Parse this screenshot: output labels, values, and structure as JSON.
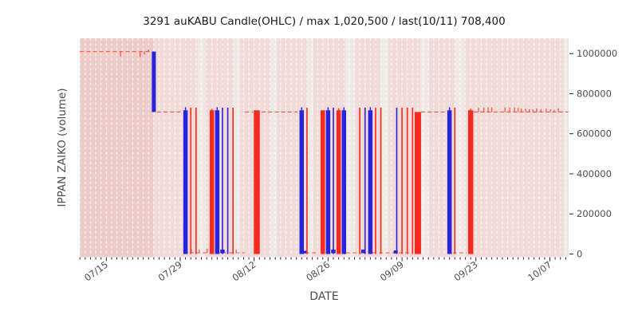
{
  "title": "3291 auKABU Candle(OHLC) / max 1,020,500 / last(10/11) 708,400",
  "chart_data": {
    "type": "candlestick-ohlc",
    "title": "3291 auKABU Candle(OHLC) / max 1,020,500 / last(10/11) 708,400",
    "xlabel": "DATE",
    "ylabel": "IPPAN ZAIKO (volume)",
    "x_tick_labels": [
      "07/15",
      "07/29",
      "08/12",
      "08/26",
      "09/09",
      "09/23",
      "10/07"
    ],
    "x_tick_days": [
      0,
      14,
      28,
      42,
      56,
      70,
      84
    ],
    "day_origin_label": "07/15",
    "day_range": [
      -5,
      87.5
    ],
    "y_ticks": [
      0,
      200000,
      400000,
      600000,
      800000,
      1000000
    ],
    "ylim": [
      -16000,
      1075000
    ],
    "max_value": 1020500,
    "last_date": "10/11",
    "last_value": 708400,
    "levels": {
      "max_line": 1010000,
      "mid_line": 708400,
      "zero_line": 6000
    },
    "candles": [
      {
        "d": 9,
        "color": "blue",
        "w": 5,
        "top": 1010000,
        "bot": 708400
      },
      {
        "d": 15,
        "color": "blue",
        "w": 5.5,
        "top": 717000,
        "bot": 0,
        "wick": 732000
      },
      {
        "d": 16,
        "color": "red",
        "w": 1.6,
        "top": 730000,
        "bot": 0
      },
      {
        "d": 17,
        "color": "red",
        "w": 1.6,
        "top": 730000,
        "bot": 0
      },
      {
        "d": 20,
        "color": "red",
        "w": 5.5,
        "top": 717000,
        "bot": 0,
        "wick": 724000
      },
      {
        "d": 21,
        "color": "blue",
        "w": 5.5,
        "top": 717000,
        "bot": 0,
        "wick": 732000
      },
      {
        "d": 22,
        "color": "blue",
        "w": 1.6,
        "top": 730000,
        "bot": 0
      },
      {
        "d": 23,
        "color": "blue",
        "w": 1.6,
        "top": 730000,
        "bot": 0
      },
      {
        "d": 24,
        "color": "red",
        "w": 1.6,
        "top": 730000,
        "bot": 0
      },
      {
        "d": 28.5,
        "color": "red",
        "w": 7.5,
        "top": 717000,
        "bot": 0
      },
      {
        "d": 37,
        "color": "blue",
        "w": 5.5,
        "top": 717000,
        "bot": 0,
        "wick": 732000
      },
      {
        "d": 38,
        "color": "red",
        "w": 1.6,
        "top": 730000,
        "bot": 0
      },
      {
        "d": 41,
        "color": "red",
        "w": 5.5,
        "top": 717000,
        "bot": 0
      },
      {
        "d": 42,
        "color": "blue",
        "w": 5.5,
        "top": 717000,
        "bot": 0,
        "wick": 732000
      },
      {
        "d": 43,
        "color": "blue",
        "w": 1.6,
        "top": 730000,
        "bot": 0
      },
      {
        "d": 44,
        "color": "red",
        "w": 5.5,
        "top": 717000,
        "bot": 0,
        "wick": 727000
      },
      {
        "d": 45,
        "color": "blue",
        "w": 5.5,
        "top": 717000,
        "bot": 0,
        "wick": 732000
      },
      {
        "d": 48,
        "color": "red",
        "w": 1.6,
        "top": 730000,
        "bot": 0
      },
      {
        "d": 49,
        "color": "blue",
        "w": 1.6,
        "top": 730000,
        "bot": 0
      },
      {
        "d": 50,
        "color": "blue",
        "w": 5.5,
        "top": 717000,
        "bot": 0,
        "wick": 732000
      },
      {
        "d": 51,
        "color": "red",
        "w": 1.6,
        "top": 730000,
        "bot": 0
      },
      {
        "d": 52,
        "color": "red",
        "w": 1.6,
        "top": 730000,
        "bot": 0
      },
      {
        "d": 55,
        "color": "blue",
        "w": 1.6,
        "top": 730000,
        "bot": 0
      },
      {
        "d": 56,
        "color": "red",
        "w": 1.6,
        "top": 730000,
        "bot": 0
      },
      {
        "d": 57,
        "color": "red",
        "w": 1.6,
        "top": 730000,
        "bot": 0
      },
      {
        "d": 58,
        "color": "red",
        "w": 1.6,
        "top": 730000,
        "bot": 0
      },
      {
        "d": 59,
        "color": "red",
        "w": 8,
        "top": 708400,
        "bot": 0
      },
      {
        "d": 65,
        "color": "blue",
        "w": 5.5,
        "top": 717000,
        "bot": 0,
        "wick": 732000
      },
      {
        "d": 66,
        "color": "red",
        "w": 1.6,
        "top": 730000,
        "bot": 0
      },
      {
        "d": 69,
        "color": "red",
        "w": 6.5,
        "top": 717000,
        "bot": 0,
        "wick": 725000
      }
    ],
    "small_bodies": [
      {
        "d": 22,
        "color": "blue",
        "w": 5.5,
        "top": 22000,
        "bot": 4000
      },
      {
        "d": 37.5,
        "color": "blue",
        "w": 5,
        "top": 15000,
        "bot": 3000
      },
      {
        "d": 43,
        "color": "blue",
        "w": 5.5,
        "top": 22000,
        "bot": 4000
      },
      {
        "d": 48.7,
        "color": "blue",
        "w": 5.5,
        "top": 22000,
        "bot": 4000
      },
      {
        "d": 54.8,
        "color": "blue",
        "w": 5,
        "top": 18000,
        "bot": 3000
      }
    ],
    "dashed_segments": {
      "max": [
        [
          -5.0,
          8.6
        ]
      ],
      "mid": [
        [
          9.6,
          14.3
        ],
        [
          26.3,
          27.8
        ],
        [
          29.4,
          36.2
        ],
        [
          59.6,
          64.1
        ],
        [
          69.6,
          87.5
        ]
      ],
      "zero": [
        [
          15.8,
          26.2
        ],
        [
          37.7,
          40.2
        ],
        [
          45.4,
          49.2
        ],
        [
          50.4,
          57.8
        ],
        [
          65.6,
          68.2
        ]
      ]
    },
    "max_line_ticks": [
      {
        "d": 2.7,
        "v": 985000
      },
      {
        "d": 6.4,
        "v": 983000
      },
      {
        "d": 7.2,
        "v": 995000
      },
      {
        "d": 8.0,
        "v": 1020500
      }
    ],
    "zero_line_ticks": [
      {
        "d": 16.1,
        "v": 24000
      },
      {
        "d": 17.6,
        "v": 22000
      },
      {
        "d": 19.1,
        "v": 26000
      },
      {
        "d": 22.0,
        "v": 20000
      },
      {
        "d": 24.6,
        "v": 22000
      },
      {
        "d": 37.8,
        "v": 18000
      }
    ],
    "mid_line_ticks": [
      {
        "d": 70.5,
        "v": 730000
      },
      {
        "d": 71.5,
        "v": 731000
      },
      {
        "d": 72.3,
        "v": 732000
      },
      {
        "d": 73.0,
        "v": 732000
      },
      {
        "d": 75.5,
        "v": 732000
      },
      {
        "d": 76.4,
        "v": 731000
      },
      {
        "d": 77.3,
        "v": 731000
      },
      {
        "d": 78.0,
        "v": 728000
      },
      {
        "d": 78.6,
        "v": 726000
      },
      {
        "d": 79.4,
        "v": 725000
      },
      {
        "d": 80.1,
        "v": 723000
      },
      {
        "d": 80.8,
        "v": 722000
      },
      {
        "d": 81.5,
        "v": 726000
      },
      {
        "d": 82.3,
        "v": 722000
      },
      {
        "d": 83.3,
        "v": 725000
      },
      {
        "d": 84.1,
        "v": 722000
      },
      {
        "d": 84.8,
        "v": 719000
      },
      {
        "d": 85.6,
        "v": 727000
      }
    ],
    "weekend_bands": [
      [
        17.3,
        18.8
      ],
      [
        24.1,
        25.3
      ],
      [
        31.1,
        32.3
      ],
      [
        38.0,
        39.2
      ],
      [
        45.3,
        47.1
      ],
      [
        51.9,
        53.4
      ],
      [
        59.5,
        61.1
      ],
      [
        66.1,
        67.9
      ],
      [
        86.6,
        87.5
      ]
    ],
    "dark_span": [
      -5.03,
      8.86
    ],
    "legend": "none",
    "grid": "vertical-daily-dashed",
    "colors": {
      "down_blue": "#2a23dc",
      "up_red": "#f42a1f",
      "dash_red": "#ff4d42",
      "bg_base": "#f0dbd8",
      "bg_dark_span": "#ecccc8",
      "bg_weekend": "#f0eae6",
      "gridline": "rgba(255,255,255,0.9)",
      "tick": "#262626",
      "tick_label": "#4d4d4d",
      "title_text": "#1a1a1a"
    }
  }
}
